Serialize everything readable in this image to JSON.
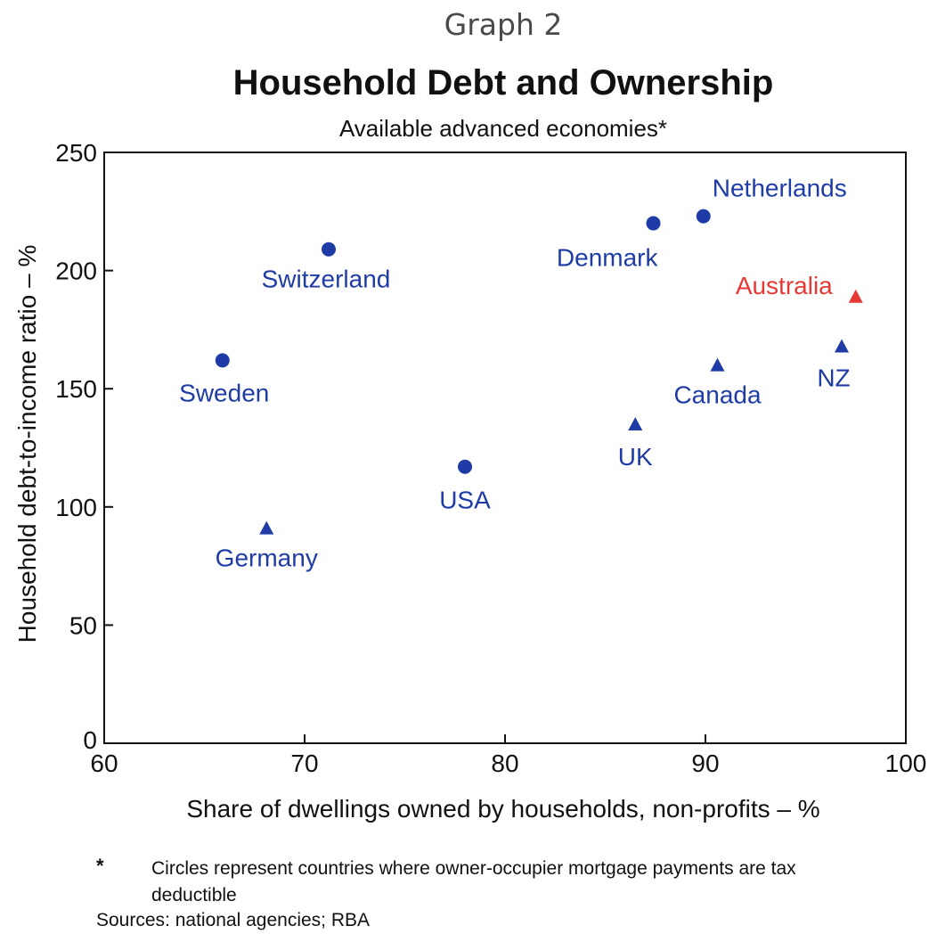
{
  "header": {
    "graph_label": "Graph 2"
  },
  "chart_data": {
    "type": "scatter",
    "title": "Household Debt and Ownership",
    "subtitle": "Available advanced economies*",
    "xlabel": "Share of dwellings owned by households, non-profits – %",
    "ylabel": "Household debt-to-income ratio – %",
    "xlim": [
      60,
      100
    ],
    "ylim": [
      0,
      250
    ],
    "x_ticks": [
      60,
      70,
      80,
      90,
      100
    ],
    "y_ticks": [
      0,
      50,
      100,
      150,
      200,
      250
    ],
    "grid": false,
    "legend": "none",
    "points": [
      {
        "label": "Netherlands",
        "x": 89.9,
        "y": 223,
        "marker": "circle",
        "color": "#1f3ca6",
        "label_position": "above-right"
      },
      {
        "label": "Denmark",
        "x": 87.4,
        "y": 220,
        "marker": "circle",
        "color": "#1f3ca6",
        "label_position": "below-left"
      },
      {
        "label": "Switzerland",
        "x": 71.2,
        "y": 209,
        "marker": "circle",
        "color": "#1f3ca6",
        "label_position": "below"
      },
      {
        "label": "Australia",
        "x": 97.5,
        "y": 189,
        "marker": "triangle",
        "color": "#e53935",
        "label_position": "left"
      },
      {
        "label": "NZ",
        "x": 96.8,
        "y": 168,
        "marker": "triangle",
        "color": "#1f3ca6",
        "label_position": "below"
      },
      {
        "label": "Sweden",
        "x": 65.9,
        "y": 162,
        "marker": "circle",
        "color": "#1f3ca6",
        "label_position": "below"
      },
      {
        "label": "Canada",
        "x": 90.6,
        "y": 160,
        "marker": "triangle",
        "color": "#1f3ca6",
        "label_position": "below"
      },
      {
        "label": "UK",
        "x": 86.5,
        "y": 135,
        "marker": "triangle",
        "color": "#1f3ca6",
        "label_position": "below"
      },
      {
        "label": "USA",
        "x": 78.0,
        "y": 117,
        "marker": "circle",
        "color": "#1f3ca6",
        "label_position": "below"
      },
      {
        "label": "Germany",
        "x": 68.1,
        "y": 91,
        "marker": "triangle",
        "color": "#1f3ca6",
        "label_position": "below"
      }
    ],
    "footnote_marker": "*",
    "footnote": "Circles represent countries where owner-occupier mortgage payments are tax deductible",
    "sources": "Sources: national agencies; RBA"
  },
  "colors": {
    "primary_marker": "#1f3ca6",
    "highlight_marker": "#e53935",
    "axis": "#111111",
    "graph_label": "#4a4a4a"
  }
}
